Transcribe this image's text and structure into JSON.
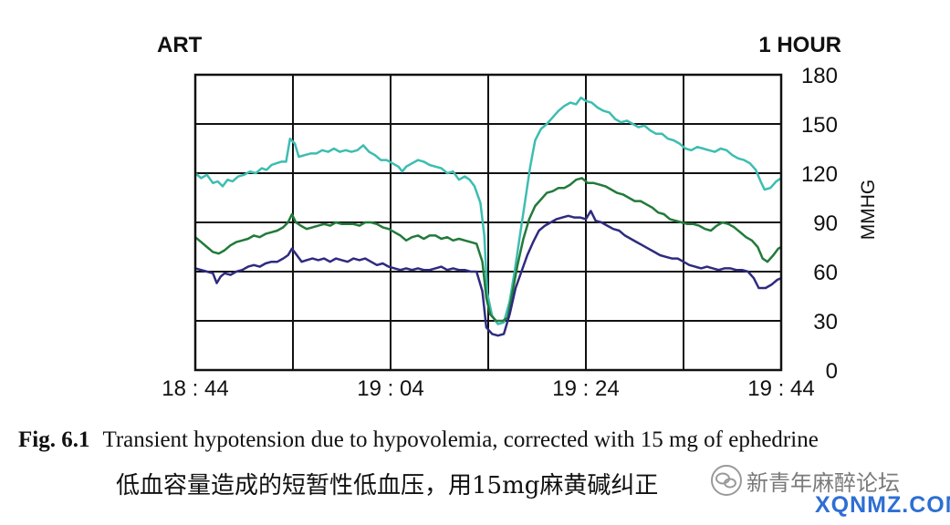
{
  "chart_data": {
    "type": "line",
    "title_left": "ART",
    "title_right": "1 HOUR",
    "ylabel": "MMHG",
    "ylim": [
      0,
      180
    ],
    "y_ticks": [
      "0",
      "30",
      "60",
      "90",
      "120",
      "150",
      "180"
    ],
    "x_tick_labels": [
      "18:44",
      "19:04",
      "19:24",
      "19:44"
    ],
    "x_ticks_minutes": [
      0,
      20,
      40,
      60
    ],
    "xlim_minutes": [
      0,
      60
    ],
    "grid": true,
    "series": [
      {
        "key": "systolic",
        "color": "#3dbdb1",
        "points": [
          [
            0,
            120
          ],
          [
            0.6,
            117
          ],
          [
            1.2,
            119
          ],
          [
            1.8,
            114
          ],
          [
            2.3,
            115
          ],
          [
            2.8,
            112
          ],
          [
            3.3,
            116
          ],
          [
            3.8,
            115
          ],
          [
            4.4,
            118
          ],
          [
            5,
            119
          ],
          [
            5.6,
            121
          ],
          [
            6.2,
            120
          ],
          [
            6.8,
            123
          ],
          [
            7.3,
            122
          ],
          [
            7.8,
            125
          ],
          [
            8.3,
            126
          ],
          [
            8.8,
            127
          ],
          [
            9.3,
            127
          ],
          [
            9.7,
            141
          ],
          [
            10.2,
            138
          ],
          [
            10.6,
            130
          ],
          [
            11.2,
            131
          ],
          [
            11.8,
            132
          ],
          [
            12.4,
            132
          ],
          [
            13,
            134
          ],
          [
            13.6,
            133
          ],
          [
            14.2,
            135
          ],
          [
            14.8,
            133
          ],
          [
            15.4,
            134
          ],
          [
            16,
            133
          ],
          [
            16.6,
            134
          ],
          [
            17.2,
            137
          ],
          [
            17.8,
            133
          ],
          [
            18.4,
            131
          ],
          [
            19,
            128
          ],
          [
            19.6,
            128
          ],
          [
            20.2,
            126
          ],
          [
            20.8,
            124
          ],
          [
            21.2,
            121
          ],
          [
            21.6,
            124
          ],
          [
            22.2,
            126
          ],
          [
            22.8,
            128
          ],
          [
            23.4,
            127
          ],
          [
            24,
            125
          ],
          [
            24.6,
            124
          ],
          [
            25.2,
            123
          ],
          [
            25.8,
            120
          ],
          [
            26.4,
            121
          ],
          [
            27,
            116
          ],
          [
            27.6,
            118
          ],
          [
            28.1,
            116
          ],
          [
            28.6,
            112
          ],
          [
            29.2,
            102
          ],
          [
            29.6,
            82
          ],
          [
            29.9,
            47
          ],
          [
            30.4,
            33
          ],
          [
            31,
            28
          ],
          [
            31.6,
            29
          ],
          [
            32.2,
            42
          ],
          [
            32.7,
            60
          ],
          [
            33.2,
            80
          ],
          [
            33.7,
            100
          ],
          [
            34.3,
            124
          ],
          [
            34.8,
            140
          ],
          [
            35.4,
            147
          ],
          [
            36,
            150
          ],
          [
            36.6,
            154
          ],
          [
            37.2,
            158
          ],
          [
            37.8,
            161
          ],
          [
            38.4,
            163
          ],
          [
            39,
            162
          ],
          [
            39.5,
            166
          ],
          [
            40,
            164
          ],
          [
            40.6,
            163
          ],
          [
            41.2,
            160
          ],
          [
            41.8,
            158
          ],
          [
            42.4,
            157
          ],
          [
            43,
            153
          ],
          [
            43.6,
            151
          ],
          [
            44.2,
            152
          ],
          [
            44.8,
            150
          ],
          [
            45.4,
            148
          ],
          [
            46,
            149
          ],
          [
            46.6,
            146
          ],
          [
            47.2,
            144
          ],
          [
            47.8,
            144
          ],
          [
            48.4,
            141
          ],
          [
            49,
            140
          ],
          [
            49.6,
            138
          ],
          [
            50.2,
            135
          ],
          [
            50.8,
            134
          ],
          [
            51.4,
            136
          ],
          [
            52,
            135
          ],
          [
            52.6,
            134
          ],
          [
            53.2,
            133
          ],
          [
            53.8,
            135
          ],
          [
            54.4,
            134
          ],
          [
            55,
            131
          ],
          [
            55.6,
            129
          ],
          [
            56.2,
            128
          ],
          [
            56.8,
            126
          ],
          [
            57.4,
            122
          ],
          [
            57.9,
            115
          ],
          [
            58.3,
            110
          ],
          [
            58.9,
            111
          ],
          [
            59.5,
            115
          ],
          [
            60,
            117
          ]
        ]
      },
      {
        "key": "mean",
        "color": "#227a3a",
        "points": [
          [
            0,
            81
          ],
          [
            0.6,
            78
          ],
          [
            1.2,
            75
          ],
          [
            1.8,
            72
          ],
          [
            2.4,
            71
          ],
          [
            3,
            73
          ],
          [
            3.6,
            76
          ],
          [
            4.2,
            78
          ],
          [
            4.8,
            79
          ],
          [
            5.4,
            80
          ],
          [
            6,
            82
          ],
          [
            6.6,
            81
          ],
          [
            7.2,
            83
          ],
          [
            7.8,
            84
          ],
          [
            8.4,
            85
          ],
          [
            9,
            87
          ],
          [
            9.5,
            90
          ],
          [
            9.9,
            95
          ],
          [
            10.3,
            90
          ],
          [
            10.8,
            88
          ],
          [
            11.4,
            86
          ],
          [
            12,
            87
          ],
          [
            12.6,
            88
          ],
          [
            13.2,
            89
          ],
          [
            13.8,
            88
          ],
          [
            14.4,
            90
          ],
          [
            15,
            89
          ],
          [
            15.6,
            89
          ],
          [
            16.2,
            89
          ],
          [
            16.8,
            88
          ],
          [
            17.4,
            90
          ],
          [
            18,
            90
          ],
          [
            18.6,
            89
          ],
          [
            19.2,
            87
          ],
          [
            19.8,
            86
          ],
          [
            20.4,
            84
          ],
          [
            21,
            82
          ],
          [
            21.6,
            79
          ],
          [
            22.2,
            81
          ],
          [
            22.8,
            82
          ],
          [
            23.4,
            80
          ],
          [
            24,
            82
          ],
          [
            24.6,
            82
          ],
          [
            25.2,
            80
          ],
          [
            25.8,
            81
          ],
          [
            26.4,
            79
          ],
          [
            27,
            80
          ],
          [
            27.6,
            79
          ],
          [
            28.2,
            78
          ],
          [
            28.8,
            77
          ],
          [
            29.4,
            66
          ],
          [
            29.8,
            44
          ],
          [
            30.2,
            34
          ],
          [
            30.8,
            30
          ],
          [
            31.5,
            30
          ],
          [
            32,
            32
          ],
          [
            32.5,
            48
          ],
          [
            33,
            64
          ],
          [
            33.6,
            80
          ],
          [
            34.2,
            92
          ],
          [
            34.8,
            100
          ],
          [
            35.4,
            104
          ],
          [
            36,
            108
          ],
          [
            36.6,
            109
          ],
          [
            37.2,
            111
          ],
          [
            37.8,
            111
          ],
          [
            38.4,
            113
          ],
          [
            39,
            116
          ],
          [
            39.6,
            117
          ],
          [
            40.2,
            114
          ],
          [
            40.8,
            114
          ],
          [
            41.4,
            113
          ],
          [
            42,
            112
          ],
          [
            42.6,
            110
          ],
          [
            43.2,
            108
          ],
          [
            43.8,
            107
          ],
          [
            44.4,
            105
          ],
          [
            45,
            103
          ],
          [
            45.6,
            103
          ],
          [
            46.2,
            101
          ],
          [
            46.8,
            99
          ],
          [
            47.4,
            96
          ],
          [
            48,
            95
          ],
          [
            48.6,
            92
          ],
          [
            49.2,
            91
          ],
          [
            49.8,
            90
          ],
          [
            50.4,
            89
          ],
          [
            51,
            89
          ],
          [
            51.6,
            88
          ],
          [
            52.2,
            86
          ],
          [
            52.8,
            85
          ],
          [
            53.4,
            88
          ],
          [
            54,
            90
          ],
          [
            54.6,
            89
          ],
          [
            55.2,
            87
          ],
          [
            55.8,
            84
          ],
          [
            56.4,
            81
          ],
          [
            57,
            79
          ],
          [
            57.6,
            75
          ],
          [
            58.1,
            68
          ],
          [
            58.6,
            66
          ],
          [
            59.2,
            70
          ],
          [
            59.7,
            74
          ],
          [
            60,
            75
          ]
        ]
      },
      {
        "key": "diastolic",
        "color": "#2e2b80",
        "points": [
          [
            0,
            62
          ],
          [
            0.6,
            61
          ],
          [
            1.2,
            60
          ],
          [
            1.8,
            59
          ],
          [
            2.2,
            53
          ],
          [
            2.6,
            57
          ],
          [
            3,
            59
          ],
          [
            3.6,
            58
          ],
          [
            4.2,
            60
          ],
          [
            4.8,
            61
          ],
          [
            5.4,
            63
          ],
          [
            6,
            64
          ],
          [
            6.6,
            63
          ],
          [
            7.2,
            65
          ],
          [
            7.8,
            66
          ],
          [
            8.4,
            66
          ],
          [
            9,
            68
          ],
          [
            9.5,
            70
          ],
          [
            9.9,
            74
          ],
          [
            10.4,
            70
          ],
          [
            10.9,
            66
          ],
          [
            11.4,
            67
          ],
          [
            12,
            68
          ],
          [
            12.6,
            67
          ],
          [
            13.2,
            68
          ],
          [
            13.8,
            66
          ],
          [
            14.4,
            68
          ],
          [
            15,
            67
          ],
          [
            15.6,
            66
          ],
          [
            16.2,
            68
          ],
          [
            16.8,
            67
          ],
          [
            17.4,
            68
          ],
          [
            18,
            66
          ],
          [
            18.6,
            64
          ],
          [
            19.2,
            65
          ],
          [
            19.8,
            63
          ],
          [
            20.4,
            62
          ],
          [
            21,
            61
          ],
          [
            21.6,
            62
          ],
          [
            22.2,
            61
          ],
          [
            22.8,
            62
          ],
          [
            23.4,
            61
          ],
          [
            24,
            61
          ],
          [
            24.6,
            62
          ],
          [
            25.2,
            63
          ],
          [
            25.8,
            61
          ],
          [
            26.4,
            62
          ],
          [
            27,
            61
          ],
          [
            27.6,
            61
          ],
          [
            28.2,
            60
          ],
          [
            28.8,
            60
          ],
          [
            29.4,
            48
          ],
          [
            29.8,
            26
          ],
          [
            30.4,
            22
          ],
          [
            31,
            21
          ],
          [
            31.6,
            22
          ],
          [
            32.2,
            34
          ],
          [
            32.8,
            50
          ],
          [
            33.4,
            60
          ],
          [
            34,
            70
          ],
          [
            34.6,
            78
          ],
          [
            35.2,
            85
          ],
          [
            35.8,
            88
          ],
          [
            36.4,
            90
          ],
          [
            37,
            92
          ],
          [
            37.6,
            93
          ],
          [
            38.2,
            94
          ],
          [
            38.8,
            93
          ],
          [
            39.4,
            93
          ],
          [
            40,
            92
          ],
          [
            40.5,
            97
          ],
          [
            41,
            91
          ],
          [
            41.6,
            90
          ],
          [
            42.2,
            88
          ],
          [
            42.8,
            86
          ],
          [
            43.4,
            85
          ],
          [
            44,
            82
          ],
          [
            44.6,
            80
          ],
          [
            45.2,
            78
          ],
          [
            45.8,
            76
          ],
          [
            46.4,
            74
          ],
          [
            47,
            72
          ],
          [
            47.6,
            70
          ],
          [
            48.2,
            69
          ],
          [
            48.8,
            68
          ],
          [
            49.4,
            68
          ],
          [
            50,
            66
          ],
          [
            50.6,
            64
          ],
          [
            51.2,
            63
          ],
          [
            51.8,
            62
          ],
          [
            52.4,
            63
          ],
          [
            53,
            62
          ],
          [
            53.6,
            61
          ],
          [
            54.2,
            62
          ],
          [
            54.8,
            62
          ],
          [
            55.4,
            61
          ],
          [
            56,
            61
          ],
          [
            56.6,
            60
          ],
          [
            57.2,
            56
          ],
          [
            57.7,
            50
          ],
          [
            58.4,
            50
          ],
          [
            59,
            52
          ],
          [
            59.6,
            55
          ],
          [
            60,
            56
          ]
        ]
      }
    ]
  },
  "caption": {
    "fig_label": "Fig. 6.1",
    "text": "Transient hypotension due to hypovolemia, corrected with 15 mg of ephedrine",
    "chinese": "低血容量造成的短暂性低血压，用15mg麻黄碱纠正"
  },
  "watermark": {
    "text": "新青年麻醉论坛",
    "site": "XQNMZ.COM",
    "logo_icon": "speech-bubble-icon"
  }
}
